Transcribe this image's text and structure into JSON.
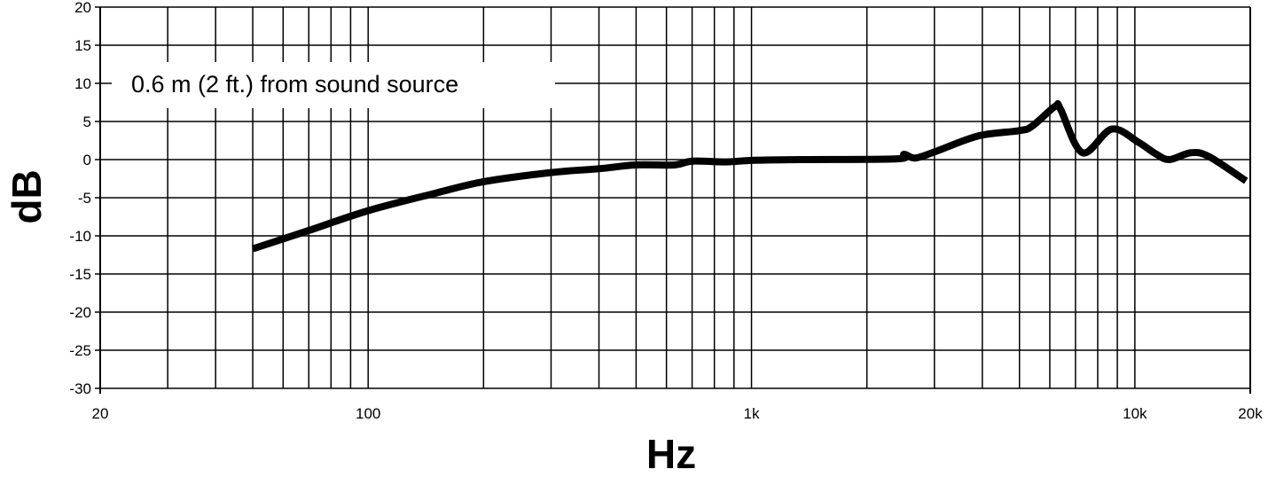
{
  "chart_data": {
    "type": "line",
    "title": "",
    "annotation": "0.6 m (2 ft.) from sound source",
    "xlabel": "Hz",
    "ylabel": "dB",
    "xscale": "log",
    "xlim": [
      20,
      20000
    ],
    "ylim": [
      -30,
      20
    ],
    "grid": true,
    "x_tick_labels": [
      {
        "value": 20,
        "label": "20"
      },
      {
        "value": 100,
        "label": "100"
      },
      {
        "value": 1000,
        "label": "1k"
      },
      {
        "value": 10000,
        "label": "10k"
      },
      {
        "value": 20000,
        "label": "20k"
      }
    ],
    "y_ticks": [
      20,
      15,
      10,
      5,
      0,
      -5,
      -10,
      -15,
      -20,
      -25,
      -30
    ],
    "series": [
      {
        "color": "#000000",
        "x": [
          50,
          70,
          100,
          150,
          200,
          300,
          400,
          500,
          630,
          700,
          860,
          1000,
          1330,
          2400,
          2500,
          2670,
          3000,
          3900,
          5000,
          5400,
          6200,
          6400,
          7300,
          8700,
          10200,
          11300,
          12300,
          14000,
          15600,
          19500
        ],
        "y": [
          -11.7,
          -9.3,
          -6.7,
          -4.4,
          -2.9,
          -1.7,
          -1.2,
          -0.7,
          -0.7,
          -0.2,
          -0.3,
          -0.1,
          0,
          0.1,
          0.7,
          0.2,
          1.0,
          3.1,
          3.8,
          4.4,
          7.0,
          6.6,
          0.9,
          4.0,
          2.3,
          0.8,
          0,
          0.9,
          0.4,
          -2.8
        ]
      }
    ]
  }
}
